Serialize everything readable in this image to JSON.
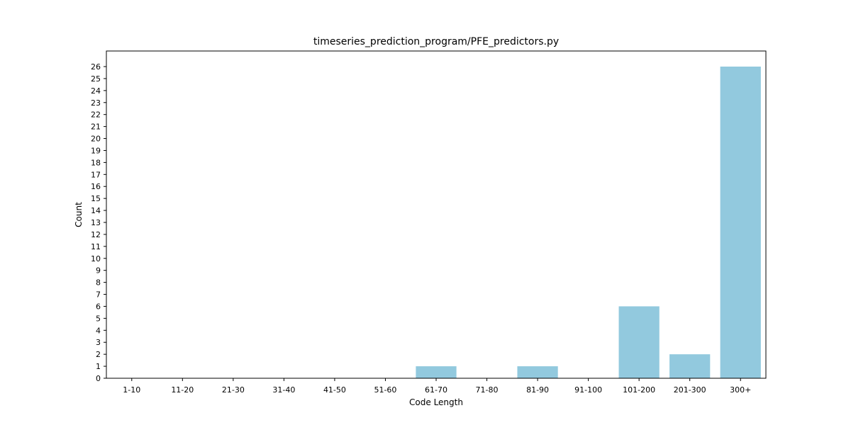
{
  "chart_data": {
    "type": "bar",
    "title": "timeseries_prediction_program/PFE_predictors.py",
    "xlabel": "Code Length",
    "ylabel": "Count",
    "categories": [
      "1-10",
      "11-20",
      "21-30",
      "31-40",
      "41-50",
      "51-60",
      "61-70",
      "71-80",
      "81-90",
      "91-100",
      "101-200",
      "201-300",
      "300+"
    ],
    "values": [
      0,
      0,
      0,
      0,
      0,
      0,
      1,
      0,
      1,
      0,
      6,
      2,
      26
    ],
    "ylim": [
      0,
      27.3
    ],
    "yticks": [
      0,
      1,
      2,
      3,
      4,
      5,
      6,
      7,
      8,
      9,
      10,
      11,
      12,
      13,
      14,
      15,
      16,
      17,
      18,
      19,
      20,
      21,
      22,
      23,
      24,
      25,
      26
    ],
    "grid": false,
    "bar_color": "#92c9de"
  }
}
